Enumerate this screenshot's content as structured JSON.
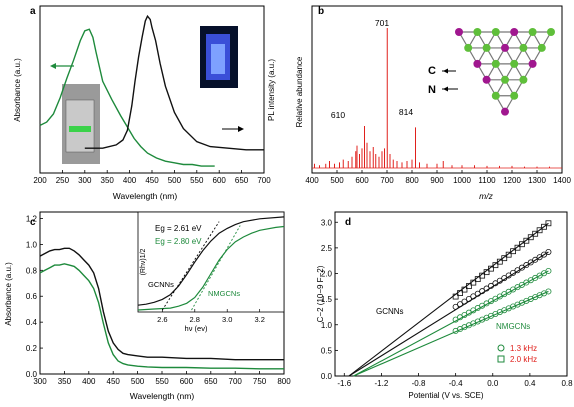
{
  "colors": {
    "black": "#111111",
    "green": "#1e8a3c",
    "red": "#e0201c",
    "magenta": "#a0178f",
    "lime": "#5fbf3a",
    "axis": "#000000"
  },
  "chart_data": [
    {
      "panel": "a",
      "type": "line",
      "xlabel": "Wavelength (nm)",
      "ylabel_left": "Absorbance (a.u.)",
      "ylabel_right": "PL intensity (a.u.)",
      "xlim": [
        200,
        700
      ],
      "x_ticks": [
        "200",
        "250",
        "300",
        "350",
        "400",
        "450",
        "500",
        "550",
        "600",
        "650",
        "700"
      ],
      "ylim": [
        0,
        1
      ],
      "series": [
        {
          "color": "green",
          "x": [
            200,
            215,
            230,
            245,
            260,
            275,
            290,
            300,
            310,
            318,
            325,
            340,
            360,
            380,
            395,
            410,
            425,
            440,
            460,
            480,
            500,
            520,
            540,
            560,
            580,
            590
          ],
          "y": [
            0.28,
            0.3,
            0.35,
            0.45,
            0.57,
            0.68,
            0.8,
            0.86,
            0.87,
            0.82,
            0.73,
            0.55,
            0.44,
            0.34,
            0.27,
            0.2,
            0.15,
            0.11,
            0.08,
            0.06,
            0.05,
            0.04,
            0.04,
            0.03,
            0.03,
            0.03
          ]
        },
        {
          "color": "black",
          "x": [
            300,
            340,
            370,
            385,
            395,
            405,
            412,
            420,
            428,
            435,
            440,
            446,
            450,
            458,
            468,
            480,
            500,
            520,
            550,
            580,
            620,
            660,
            700
          ],
          "y": [
            0.14,
            0.14,
            0.16,
            0.19,
            0.25,
            0.4,
            0.55,
            0.7,
            0.82,
            0.92,
            0.95,
            0.93,
            0.88,
            0.8,
            0.66,
            0.52,
            0.36,
            0.26,
            0.18,
            0.15,
            0.14,
            0.13,
            0.13
          ]
        }
      ]
    },
    {
      "panel": "b",
      "type": "bar",
      "xlabel": "m/z",
      "ylabel": "Relative abundance",
      "xlim": [
        400,
        1400
      ],
      "x_ticks": [
        "400",
        "500",
        "600",
        "700",
        "800",
        "900",
        "1000",
        "1100",
        "1200",
        "1300",
        "1400"
      ],
      "ylim": [
        0,
        1
      ],
      "peak_labels": [
        {
          "text": "701",
          "x": 701,
          "y": 1.0
        },
        {
          "text": "610",
          "x": 610,
          "y": 0.28
        },
        {
          "text": "814",
          "x": 814,
          "y": 0.27
        }
      ],
      "peaks": [
        {
          "x": 410,
          "y": 0.03
        },
        {
          "x": 430,
          "y": 0.02
        },
        {
          "x": 455,
          "y": 0.03
        },
        {
          "x": 470,
          "y": 0.05
        },
        {
          "x": 490,
          "y": 0.03
        },
        {
          "x": 510,
          "y": 0.04
        },
        {
          "x": 525,
          "y": 0.06
        },
        {
          "x": 545,
          "y": 0.05
        },
        {
          "x": 560,
          "y": 0.08
        },
        {
          "x": 575,
          "y": 0.12
        },
        {
          "x": 580,
          "y": 0.16
        },
        {
          "x": 590,
          "y": 0.1
        },
        {
          "x": 600,
          "y": 0.14
        },
        {
          "x": 610,
          "y": 0.3
        },
        {
          "x": 620,
          "y": 0.18
        },
        {
          "x": 632,
          "y": 0.12
        },
        {
          "x": 645,
          "y": 0.15
        },
        {
          "x": 655,
          "y": 0.1
        },
        {
          "x": 668,
          "y": 0.08
        },
        {
          "x": 680,
          "y": 0.12
        },
        {
          "x": 690,
          "y": 0.14
        },
        {
          "x": 701,
          "y": 1.0
        },
        {
          "x": 712,
          "y": 0.1
        },
        {
          "x": 725,
          "y": 0.06
        },
        {
          "x": 740,
          "y": 0.05
        },
        {
          "x": 760,
          "y": 0.04
        },
        {
          "x": 780,
          "y": 0.05
        },
        {
          "x": 800,
          "y": 0.06
        },
        {
          "x": 814,
          "y": 0.29
        },
        {
          "x": 830,
          "y": 0.04
        },
        {
          "x": 860,
          "y": 0.03
        },
        {
          "x": 900,
          "y": 0.03
        },
        {
          "x": 925,
          "y": 0.05
        },
        {
          "x": 960,
          "y": 0.02
        },
        {
          "x": 1000,
          "y": 0.02
        },
        {
          "x": 1050,
          "y": 0.02
        },
        {
          "x": 1100,
          "y": 0.015
        },
        {
          "x": 1150,
          "y": 0.015
        },
        {
          "x": 1200,
          "y": 0.015
        },
        {
          "x": 1250,
          "y": 0.01
        },
        {
          "x": 1300,
          "y": 0.01
        },
        {
          "x": 1350,
          "y": 0.01
        }
      ],
      "annotations": [
        "C",
        "N"
      ]
    },
    {
      "panel": "c",
      "type": "line",
      "xlabel": "Wavelength (nm)",
      "ylabel": "Absorbance (a.u.)",
      "xlim": [
        300,
        800
      ],
      "ylim": [
        0,
        1.25
      ],
      "x_ticks": [
        "300",
        "350",
        "400",
        "450",
        "500",
        "550",
        "600",
        "650",
        "700",
        "750",
        "800"
      ],
      "y_ticks": [
        "0.0",
        "0.2",
        "0.4",
        "0.6",
        "0.8",
        "1.0",
        "1.2"
      ],
      "series": [
        {
          "color": "black",
          "x": [
            300,
            310,
            320,
            330,
            340,
            350,
            360,
            370,
            380,
            390,
            400,
            410,
            420,
            430,
            440,
            450,
            460,
            470,
            480,
            500,
            520,
            550,
            600,
            650,
            700,
            750,
            800
          ],
          "y": [
            0.91,
            0.93,
            0.95,
            0.96,
            0.96,
            0.97,
            0.97,
            0.95,
            0.92,
            0.88,
            0.84,
            0.78,
            0.66,
            0.48,
            0.33,
            0.24,
            0.19,
            0.16,
            0.15,
            0.14,
            0.13,
            0.13,
            0.12,
            0.12,
            0.11,
            0.11,
            0.11
          ]
        },
        {
          "color": "green",
          "x": [
            300,
            310,
            320,
            330,
            340,
            350,
            360,
            370,
            380,
            390,
            400,
            410,
            420,
            430,
            440,
            450,
            460,
            470,
            480,
            500,
            520,
            550,
            600,
            650,
            700,
            750,
            800
          ],
          "y": [
            0.78,
            0.8,
            0.82,
            0.84,
            0.84,
            0.85,
            0.84,
            0.83,
            0.8,
            0.76,
            0.72,
            0.66,
            0.55,
            0.39,
            0.24,
            0.15,
            0.1,
            0.08,
            0.07,
            0.06,
            0.055,
            0.05,
            0.05,
            0.045,
            0.045,
            0.04,
            0.04
          ]
        }
      ],
      "inset": {
        "xlabel": "hν (ev)",
        "ylabel": "(Rhν)1/2",
        "xlim": [
          2.45,
          3.35
        ],
        "x_ticks": [
          "2.6",
          "2.8",
          "3.0",
          "3.2"
        ],
        "legend": [
          {
            "text": "Eg = 2.61 eV",
            "color": "black"
          },
          {
            "text": "Eg = 2.80 eV",
            "color": "green"
          }
        ],
        "labels": [
          "GCNNs",
          "NMGCNs"
        ],
        "series": [
          {
            "color": "black",
            "x": [
              2.45,
              2.5,
              2.55,
              2.6,
              2.65,
              2.7,
              2.75,
              2.8,
              2.85,
              2.9,
              2.95,
              3.0,
              3.05,
              3.1,
              3.2,
              3.35
            ],
            "y": [
              0.05,
              0.06,
              0.08,
              0.11,
              0.16,
              0.25,
              0.37,
              0.5,
              0.62,
              0.72,
              0.8,
              0.85,
              0.89,
              0.92,
              0.95,
              0.97
            ]
          },
          {
            "color": "green",
            "x": [
              2.45,
              2.55,
              2.65,
              2.7,
              2.75,
              2.8,
              2.85,
              2.9,
              2.95,
              3.0,
              3.05,
              3.1,
              3.15,
              3.2,
              3.3,
              3.35
            ],
            "y": [
              0.0,
              0.01,
              0.02,
              0.04,
              0.07,
              0.13,
              0.24,
              0.38,
              0.52,
              0.63,
              0.71,
              0.76,
              0.8,
              0.83,
              0.86,
              0.87
            ]
          }
        ]
      }
    },
    {
      "panel": "d",
      "type": "scatter",
      "xlabel": "Potential (V vs. SCE)",
      "ylabel": "C−2 (10−9 F−2)",
      "xlim": [
        -1.7,
        0.8
      ],
      "ylim": [
        0,
        3.2
      ],
      "x_ticks": [
        "-1.6",
        "-1.2",
        "-0.8",
        "-0.4",
        "0.0",
        "0.4",
        "0.8"
      ],
      "y_ticks": [
        "0.0",
        "0.5",
        "1.0",
        "1.5",
        "2.0",
        "2.5",
        "3.0"
      ],
      "labels": [
        "GCNNs",
        "NMGCNs"
      ],
      "legend": [
        {
          "text": "1.3 kHz",
          "marker": "circle"
        },
        {
          "text": "2.0 kHz",
          "marker": "square"
        }
      ],
      "series": [
        {
          "color": "black",
          "marker": "square",
          "x0": -0.4,
          "x1": 0.6,
          "y0": 1.55,
          "y1": 2.98,
          "fit": [
            -1.55,
            0,
            0.6,
            2.98
          ]
        },
        {
          "color": "black",
          "marker": "circle",
          "x0": -0.4,
          "x1": 0.6,
          "y0": 1.35,
          "y1": 2.42,
          "fit": [
            -1.55,
            0,
            0.6,
            2.42
          ]
        },
        {
          "color": "green",
          "marker": "circle",
          "x0": -0.4,
          "x1": 0.6,
          "y0": 1.1,
          "y1": 2.05,
          "fit": [
            -1.5,
            0,
            0.6,
            2.05
          ]
        },
        {
          "color": "green",
          "marker": "circle",
          "x0": -0.4,
          "x1": 0.6,
          "y0": 0.88,
          "y1": 1.65,
          "fit": [
            -1.5,
            0,
            0.6,
            1.65
          ]
        }
      ]
    }
  ],
  "panel_labels": [
    "a",
    "b",
    "c",
    "d"
  ]
}
